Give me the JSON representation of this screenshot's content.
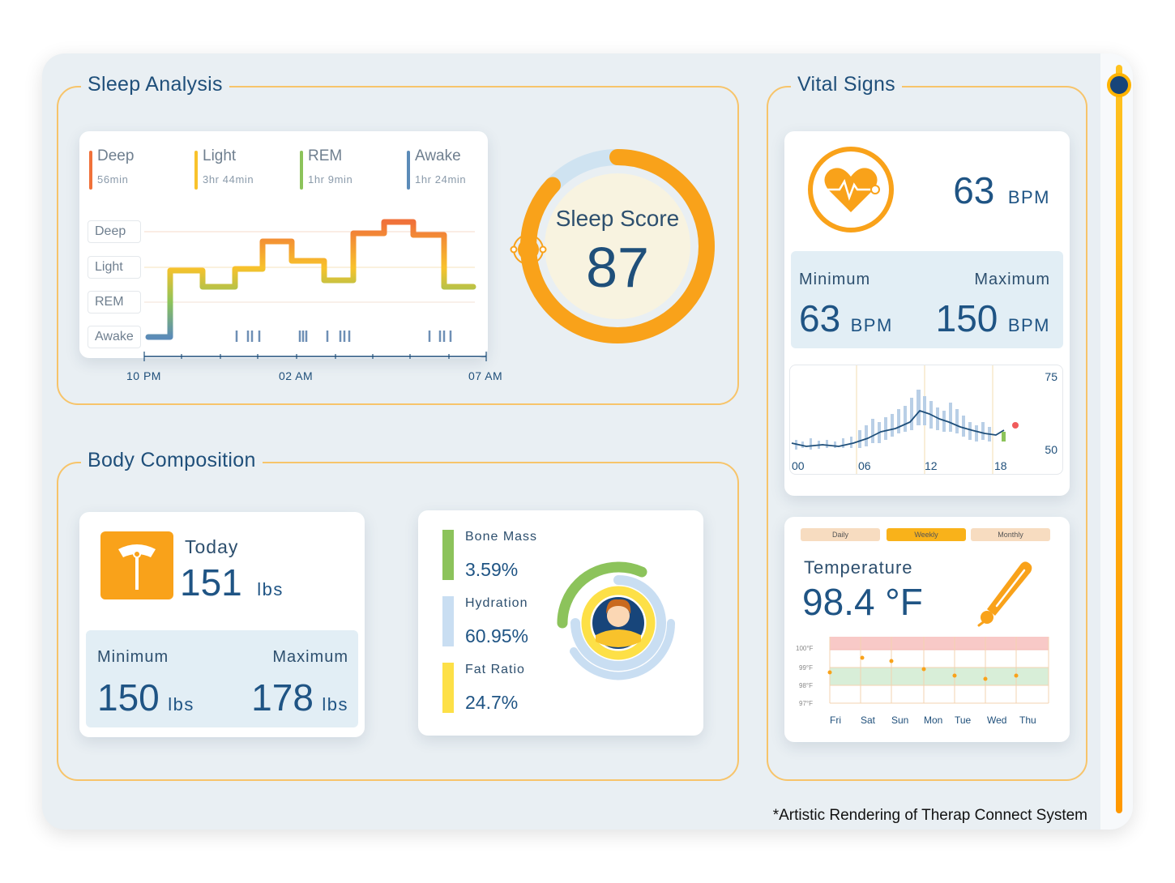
{
  "sections": {
    "sleep": "Sleep Analysis",
    "vitals": "Vital Signs",
    "body": "Body Composition"
  },
  "sleep": {
    "legend": [
      {
        "name": "Deep",
        "value": "56min",
        "color": "#f0713a"
      },
      {
        "name": "Light",
        "value": "3hr 44min",
        "color": "#f8c22b"
      },
      {
        "name": "REM",
        "value": "1hr 9min",
        "color": "#8cc35b"
      },
      {
        "name": "Awake",
        "value": "1hr 24min",
        "color": "#5b8bb8"
      }
    ],
    "stages": [
      "Deep",
      "Light",
      "REM",
      "Awake"
    ],
    "times": [
      "10 PM",
      "02 AM",
      "07 AM"
    ],
    "score_label": "Sleep Score",
    "score": "87",
    "score_fraction": 0.87
  },
  "vitals": {
    "heart_rate": "63",
    "unit": "BPM",
    "min_label": "Minimum",
    "max_label": "Maximum",
    "min": "63",
    "max": "150",
    "chart_x": [
      "00",
      "06",
      "12",
      "18"
    ],
    "chart_y": [
      "75",
      "50"
    ]
  },
  "temperature": {
    "tabs": [
      "Daily",
      "Weekly",
      "Monthly"
    ],
    "active_tab": "Weekly",
    "label": "Temperature",
    "value": "98.4 °F",
    "y_labels": [
      "100°F",
      "99°F",
      "98°F",
      "97°F"
    ],
    "days": [
      "Fri",
      "Sat",
      "Sun",
      "Mon",
      "Tue",
      "Wed",
      "Thu"
    ]
  },
  "weight": {
    "today_label": "Today",
    "today": "151",
    "unit": "lbs",
    "min_label": "Minimum",
    "max_label": "Maximum",
    "min": "150",
    "max": "178"
  },
  "composition": [
    {
      "name": "Bone Mass",
      "value": "3.59%",
      "color": "#8cc35b"
    },
    {
      "name": "Hydration",
      "value": "60.95%",
      "color": "#c9def2"
    },
    {
      "name": "Fat Ratio",
      "value": "24.7%",
      "color": "#fde047"
    }
  ],
  "footer": "*Artistic Rendering of Therap Connect System",
  "colors": {
    "accent": "#f9a21a",
    "navy": "#1f5484",
    "panel": "#e9eff3"
  }
}
